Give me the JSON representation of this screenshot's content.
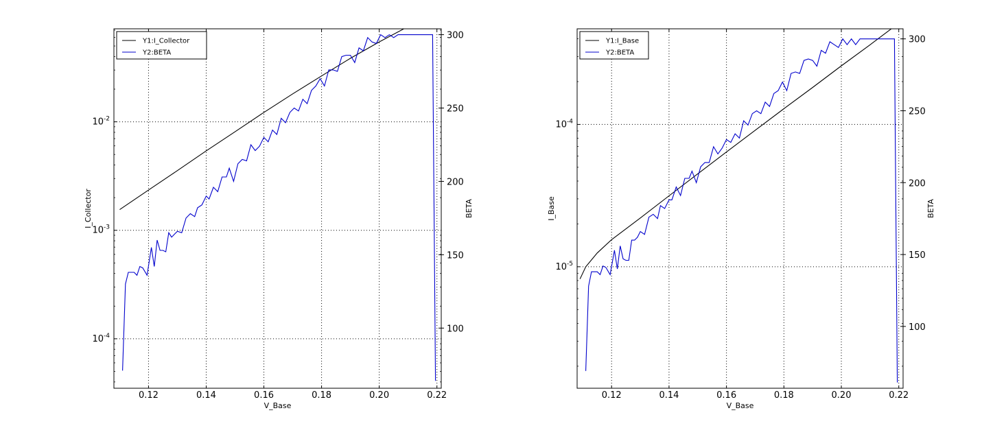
{
  "chart_data": [
    {
      "type": "line",
      "xlabel": "V_Base",
      "ylabel": "I_Collector",
      "y2label": "BETA",
      "xlim": [
        0.108,
        0.2215
      ],
      "ylim": [
        3.5e-05,
        0.072
      ],
      "yscale": "log",
      "y2lim": [
        59,
        304
      ],
      "grid": true,
      "legend_position": "top-left",
      "x_ticks": [
        0.12,
        0.14,
        0.16,
        0.18,
        0.2,
        0.22
      ],
      "x_tick_labels": [
        "0.12",
        "0.14",
        "0.16",
        "0.18",
        "0.20",
        "0.22"
      ],
      "y_ticks": [
        0.0001,
        0.001,
        0.01
      ],
      "y_tick_labels": [
        {
          "base": "10",
          "exp": "-4"
        },
        {
          "base": "10",
          "exp": "-3"
        },
        {
          "base": "10",
          "exp": "-2"
        }
      ],
      "y2_ticks": [
        100,
        150,
        200,
        250,
        300
      ],
      "y2_tick_labels": [
        "100",
        "150",
        "200",
        "250",
        "300"
      ],
      "series": [
        {
          "name": "Y1:I_Collector",
          "axis": "left",
          "color": "#000000",
          "x": [
            0.11,
            0.12,
            0.13,
            0.14,
            0.15,
            0.16,
            0.17,
            0.18,
            0.19,
            0.2,
            0.21,
            0.22
          ],
          "y": [
            0.00155,
            0.00235,
            0.00355,
            0.0054,
            0.0081,
            0.0122,
            0.0181,
            0.0265,
            0.0385,
            0.0545,
            0.0755,
            0.104
          ]
        },
        {
          "name": "Y2:BETA",
          "axis": "right",
          "color": "#0000cc",
          "x": [
            0.111,
            0.112,
            0.113,
            0.115,
            0.116,
            0.117,
            0.118,
            0.1195,
            0.121,
            0.122,
            0.123,
            0.124,
            0.125,
            0.126,
            0.127,
            0.128,
            0.129,
            0.13,
            0.1315,
            0.133,
            0.1345,
            0.136,
            0.137,
            0.1385,
            0.14,
            0.141,
            0.1425,
            0.144,
            0.1455,
            0.147,
            0.148,
            0.1495,
            0.151,
            0.1525,
            0.154,
            0.1555,
            0.157,
            0.1585,
            0.16,
            0.1615,
            0.163,
            0.1645,
            0.166,
            0.1675,
            0.169,
            0.1705,
            0.172,
            0.1735,
            0.175,
            0.1765,
            0.178,
            0.1795,
            0.181,
            0.1825,
            0.184,
            0.1855,
            0.187,
            0.1885,
            0.19,
            0.1915,
            0.193,
            0.1945,
            0.196,
            0.1975,
            0.199,
            0.2005,
            0.202,
            0.2035,
            0.205,
            0.2065,
            0.208,
            0.2095,
            0.211,
            0.2125,
            0.214,
            0.2155,
            0.217,
            0.2185,
            0.2195
          ],
          "y": [
            71,
            130,
            138,
            138,
            136,
            142,
            141,
            136,
            155,
            142,
            160,
            153,
            153,
            152,
            165,
            162,
            164,
            166,
            165,
            175,
            178,
            176,
            182,
            184,
            190,
            188,
            196,
            193,
            203,
            203,
            209,
            200,
            212,
            215,
            214,
            225,
            221,
            224,
            230,
            227,
            235,
            232,
            243,
            240,
            247,
            250,
            248,
            256,
            253,
            262,
            265,
            270,
            265,
            276,
            276,
            275,
            285,
            286,
            286,
            281,
            291,
            289,
            298,
            295,
            294,
            300,
            298,
            300,
            298,
            300,
            300,
            300,
            300,
            300,
            300,
            300,
            300,
            300,
            64
          ]
        }
      ]
    },
    {
      "type": "line",
      "xlabel": "V_Base",
      "ylabel": "I_Base",
      "y2label": "BETA",
      "xlim": [
        0.108,
        0.2215
      ],
      "ylim": [
        1.4e-06,
        0.00047
      ],
      "yscale": "log",
      "y2lim": [
        57,
        307
      ],
      "grid": true,
      "legend_position": "top-left",
      "x_ticks": [
        0.12,
        0.14,
        0.16,
        0.18,
        0.2,
        0.22
      ],
      "x_tick_labels": [
        "0.12",
        "0.14",
        "0.16",
        "0.18",
        "0.20",
        "0.22"
      ],
      "y_ticks": [
        1e-05,
        0.0001
      ],
      "y_tick_labels": [
        {
          "base": "10",
          "exp": "-5"
        },
        {
          "base": "10",
          "exp": "-4"
        }
      ],
      "y2_ticks": [
        100,
        150,
        200,
        250,
        300
      ],
      "y2_tick_labels": [
        "100",
        "150",
        "200",
        "250",
        "300"
      ],
      "series": [
        {
          "name": "Y1:I_Base",
          "axis": "left",
          "color": "#000000",
          "x": [
            0.109,
            0.111,
            0.115,
            0.12,
            0.13,
            0.14,
            0.15,
            0.16,
            0.17,
            0.18,
            0.19,
            0.2,
            0.21,
            0.22
          ],
          "y": [
            8.2e-06,
            1e-05,
            1.25e-05,
            1.55e-05,
            2.2e-05,
            3.15e-05,
            4.5e-05,
            6.4e-05,
            9.1e-05,
            0.000129,
            0.000182,
            0.000258,
            0.000363,
            0.000515
          ]
        },
        {
          "name": "Y2:BETA",
          "axis": "right",
          "color": "#0000cc",
          "x": [
            0.111,
            0.112,
            0.113,
            0.115,
            0.116,
            0.117,
            0.118,
            0.1195,
            0.121,
            0.122,
            0.123,
            0.124,
            0.125,
            0.126,
            0.127,
            0.128,
            0.129,
            0.13,
            0.1315,
            0.133,
            0.1345,
            0.136,
            0.137,
            0.1385,
            0.14,
            0.141,
            0.1425,
            0.144,
            0.1455,
            0.147,
            0.148,
            0.1495,
            0.151,
            0.1525,
            0.154,
            0.1555,
            0.157,
            0.1585,
            0.16,
            0.1615,
            0.163,
            0.1645,
            0.166,
            0.1675,
            0.169,
            0.1705,
            0.172,
            0.1735,
            0.175,
            0.1765,
            0.178,
            0.1795,
            0.181,
            0.1825,
            0.184,
            0.1855,
            0.187,
            0.1885,
            0.19,
            0.1915,
            0.193,
            0.1945,
            0.196,
            0.1975,
            0.199,
            0.2005,
            0.202,
            0.2035,
            0.205,
            0.2065,
            0.208,
            0.2095,
            0.211,
            0.2125,
            0.214,
            0.2155,
            0.217,
            0.2185,
            0.2195
          ],
          "y": [
            69,
            128,
            138,
            138,
            136,
            142,
            141,
            136,
            153,
            140,
            156,
            147,
            146,
            146,
            160,
            160,
            162,
            166,
            164,
            176,
            178,
            175,
            184,
            182,
            188,
            188,
            197,
            191,
            203,
            203,
            208,
            200,
            211,
            214,
            214,
            225,
            220,
            224,
            230,
            228,
            234,
            231,
            243,
            240,
            248,
            250,
            248,
            256,
            253,
            262,
            264,
            270,
            264,
            276,
            277,
            276,
            285,
            286,
            285,
            281,
            292,
            290,
            298,
            296,
            294,
            300,
            296,
            300,
            296,
            300,
            300,
            300,
            300,
            300,
            300,
            300,
            300,
            300,
            61
          ]
        }
      ]
    }
  ]
}
